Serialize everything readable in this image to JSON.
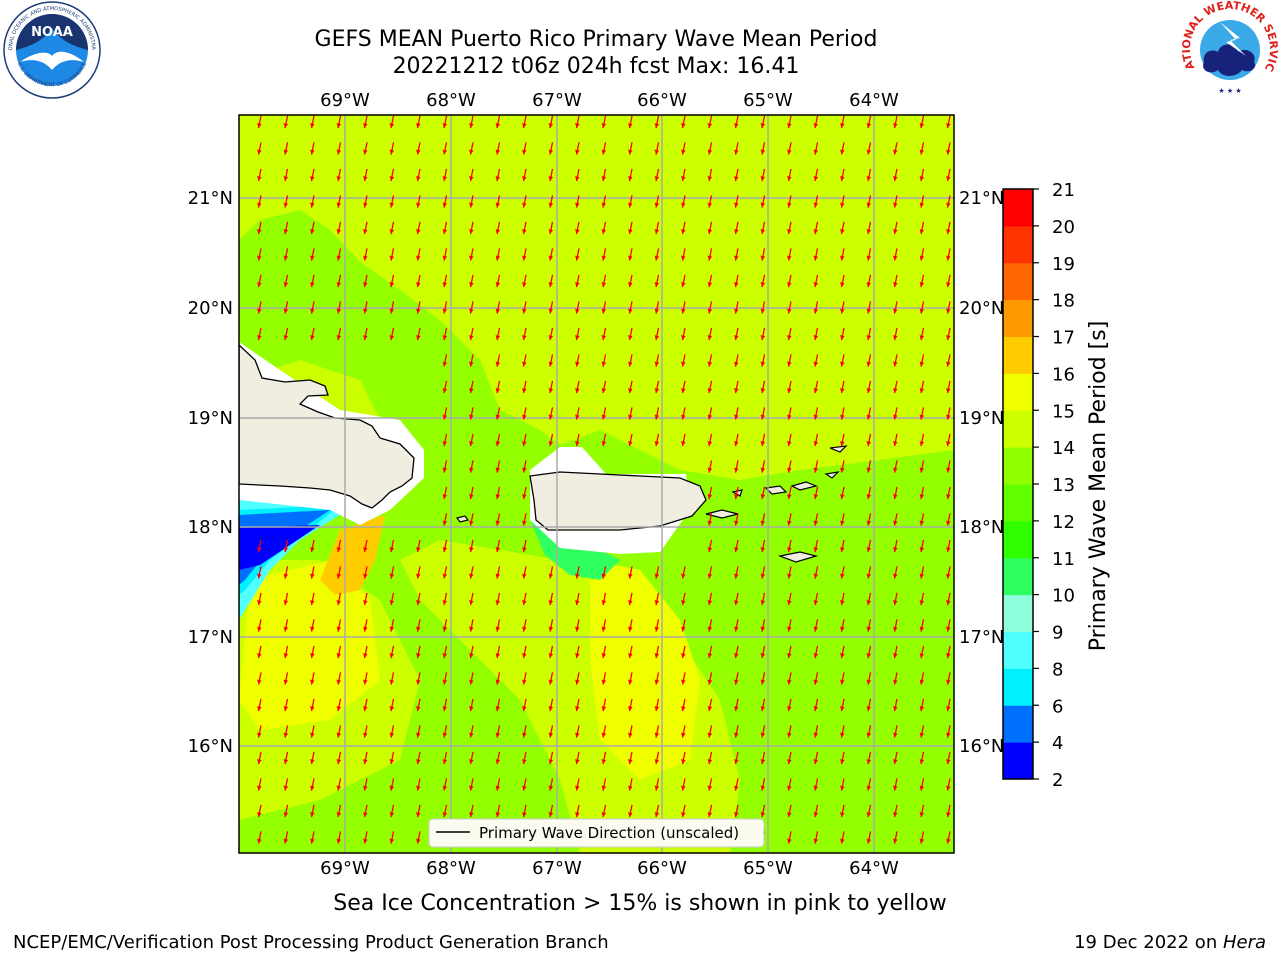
{
  "header": {
    "title_line1": "GEFS MEAN Puerto Rico Primary Wave Mean Period",
    "title_line2": "20221212 t06z 024h fcst   Max: 16.41"
  },
  "logos": {
    "left": "noaa-logo",
    "right": "national-weather-service-logo",
    "noaa_text": "NOAA",
    "noaa_ring_text": "NATIONAL OCEANIC AND ATMOSPHERIC ADMINISTRATION",
    "noaa_ring_text_bottom": "U.S. DEPARTMENT OF COMMERCE",
    "nws_ring_text": "NATIONAL WEATHER SERVICE"
  },
  "map": {
    "lon_labels": [
      "69°W",
      "68°W",
      "67°W",
      "66°W",
      "65°W",
      "64°W"
    ],
    "lat_labels": [
      "21°N",
      "20°N",
      "19°N",
      "18°N",
      "17°N",
      "16°N"
    ],
    "legend_label": "Primary Wave Direction (unscaled)",
    "arrow_color": "#ff0000",
    "land_color": "#efeee0"
  },
  "colorbar": {
    "label": "Primary Wave Mean Period [s]",
    "ticks": [
      "2",
      "4",
      "6",
      "8",
      "9",
      "10",
      "11",
      "12",
      "13",
      "14",
      "15",
      "16",
      "17",
      "18",
      "19",
      "20",
      "21"
    ],
    "colors": [
      "#0000ff",
      "#0070ff",
      "#00f0ff",
      "#50ffff",
      "#90ffdd",
      "#30ff60",
      "#30ff00",
      "#60ff00",
      "#90ff00",
      "#ccff00",
      "#f0ff00",
      "#ffcc00",
      "#ff9900",
      "#ff6600",
      "#ff3300",
      "#ff0000"
    ]
  },
  "subtitle": "Sea Ice Concentration > 15% is shown in pink to yellow",
  "footer": {
    "left": "NCEP/EMC/Verification Post Processing Product Generation Branch",
    "right_prefix": "19 Dec 2022 on ",
    "right_host": "Hera"
  }
}
